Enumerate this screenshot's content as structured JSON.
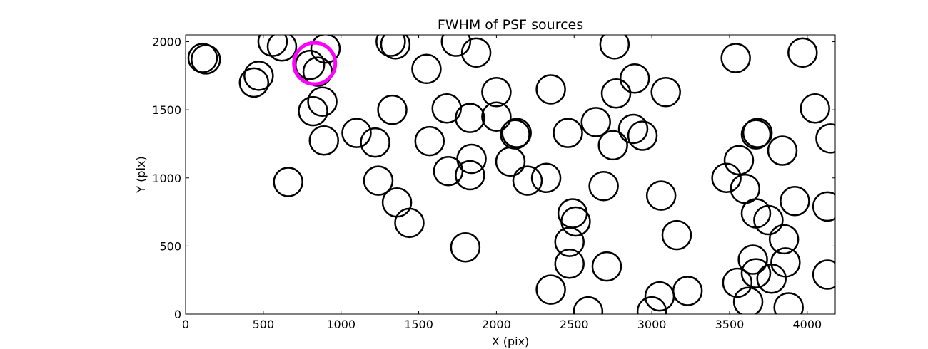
{
  "chart_data": {
    "type": "scatter",
    "title": "FWHM of PSF sources",
    "xlabel": "X (pix)",
    "ylabel": "Y (pix)",
    "xlim": [
      0,
      4180
    ],
    "ylim": [
      0,
      2050
    ],
    "xticks": [
      0,
      500,
      1000,
      1500,
      2000,
      2500,
      3000,
      3500,
      4000
    ],
    "yticks": [
      0,
      500,
      1000,
      1500,
      2000
    ],
    "grid": false,
    "marker": "open circle",
    "colors": {
      "source": "#000000",
      "highlight": "#ff00ff"
    },
    "series": [
      {
        "values": [
          {
            "x": 110,
            "y": 1880
          },
          {
            "x": 130,
            "y": 1870
          },
          {
            "x": 560,
            "y": 2000
          },
          {
            "x": 620,
            "y": 1965
          },
          {
            "x": 440,
            "y": 1700
          },
          {
            "x": 470,
            "y": 1750
          },
          {
            "x": 900,
            "y": 1950
          },
          {
            "x": 850,
            "y": 1780
          },
          {
            "x": 800,
            "y": 1830
          },
          {
            "x": 820,
            "y": 1490
          },
          {
            "x": 880,
            "y": 1560
          },
          {
            "x": 890,
            "y": 1275
          },
          {
            "x": 660,
            "y": 970
          },
          {
            "x": 1320,
            "y": 2000
          },
          {
            "x": 1350,
            "y": 1980
          },
          {
            "x": 1740,
            "y": 2000
          },
          {
            "x": 1870,
            "y": 1920
          },
          {
            "x": 1550,
            "y": 1800
          },
          {
            "x": 1330,
            "y": 1500
          },
          {
            "x": 1100,
            "y": 1330
          },
          {
            "x": 1220,
            "y": 1260
          },
          {
            "x": 1680,
            "y": 1510
          },
          {
            "x": 1830,
            "y": 1440
          },
          {
            "x": 1570,
            "y": 1270
          },
          {
            "x": 1840,
            "y": 1140
          },
          {
            "x": 1690,
            "y": 1050
          },
          {
            "x": 1830,
            "y": 1020
          },
          {
            "x": 1240,
            "y": 980
          },
          {
            "x": 1360,
            "y": 820
          },
          {
            "x": 1440,
            "y": 670
          },
          {
            "x": 1800,
            "y": 490
          },
          {
            "x": 2000,
            "y": 1630
          },
          {
            "x": 2000,
            "y": 1450
          },
          {
            "x": 2130,
            "y": 1330
          },
          {
            "x": 2120,
            "y": 1320
          },
          {
            "x": 2090,
            "y": 1120
          },
          {
            "x": 2200,
            "y": 980
          },
          {
            "x": 2320,
            "y": 1000
          },
          {
            "x": 2350,
            "y": 1650
          },
          {
            "x": 2460,
            "y": 1330
          },
          {
            "x": 2640,
            "y": 1410
          },
          {
            "x": 2760,
            "y": 1980
          },
          {
            "x": 2770,
            "y": 1620
          },
          {
            "x": 2890,
            "y": 1730
          },
          {
            "x": 2750,
            "y": 1240
          },
          {
            "x": 2880,
            "y": 1360
          },
          {
            "x": 2940,
            "y": 1310
          },
          {
            "x": 3090,
            "y": 1630
          },
          {
            "x": 2690,
            "y": 940
          },
          {
            "x": 2490,
            "y": 740
          },
          {
            "x": 2510,
            "y": 680
          },
          {
            "x": 2470,
            "y": 530
          },
          {
            "x": 2470,
            "y": 370
          },
          {
            "x": 2710,
            "y": 350
          },
          {
            "x": 2350,
            "y": 180
          },
          {
            "x": 2590,
            "y": 20
          },
          {
            "x": 3060,
            "y": 870
          },
          {
            "x": 3160,
            "y": 580
          },
          {
            "x": 3050,
            "y": 130
          },
          {
            "x": 3000,
            "y": 20
          },
          {
            "x": 3230,
            "y": 170
          },
          {
            "x": 3540,
            "y": 1880
          },
          {
            "x": 3970,
            "y": 1920
          },
          {
            "x": 4050,
            "y": 1510
          },
          {
            "x": 4150,
            "y": 1290
          },
          {
            "x": 3680,
            "y": 1330
          },
          {
            "x": 3670,
            "y": 1320
          },
          {
            "x": 3560,
            "y": 1130
          },
          {
            "x": 3840,
            "y": 1200
          },
          {
            "x": 3480,
            "y": 1000
          },
          {
            "x": 3600,
            "y": 920
          },
          {
            "x": 3920,
            "y": 830
          },
          {
            "x": 4130,
            "y": 790
          },
          {
            "x": 3670,
            "y": 740
          },
          {
            "x": 3750,
            "y": 690
          },
          {
            "x": 3850,
            "y": 550
          },
          {
            "x": 3860,
            "y": 380
          },
          {
            "x": 3650,
            "y": 400
          },
          {
            "x": 3670,
            "y": 300
          },
          {
            "x": 3770,
            "y": 260
          },
          {
            "x": 3550,
            "y": 230
          },
          {
            "x": 3620,
            "y": 90
          },
          {
            "x": 3880,
            "y": 50
          },
          {
            "x": 4130,
            "y": 290
          }
        ]
      },
      {
        "highlight": true,
        "values": [
          {
            "x": 830,
            "y": 1840
          }
        ]
      }
    ]
  }
}
